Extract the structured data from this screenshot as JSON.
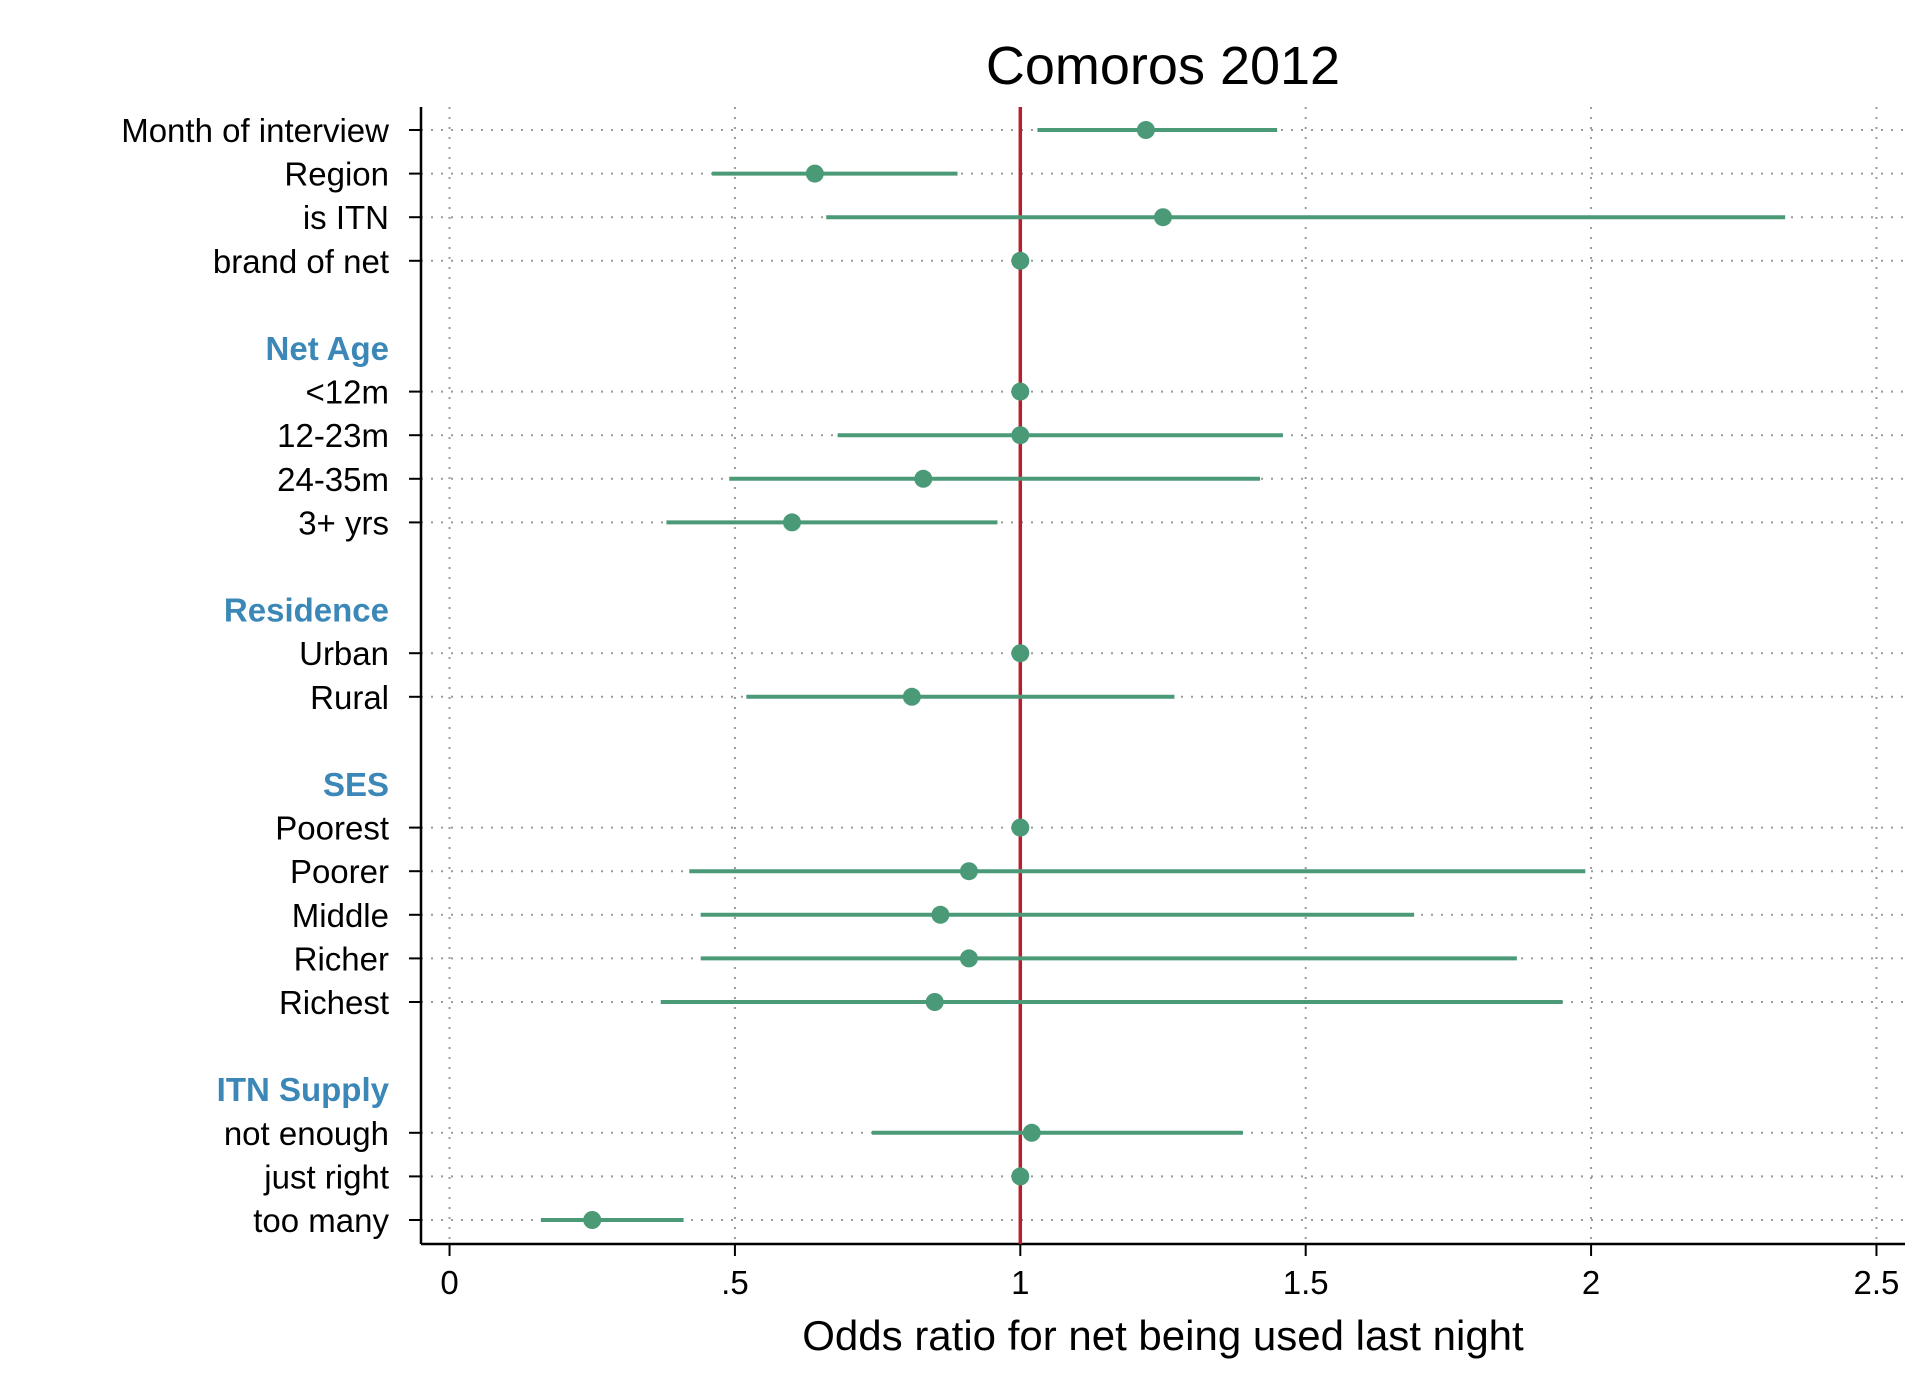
{
  "chart_data": {
    "type": "forest",
    "title": "Comoros 2012",
    "xlabel": "Odds ratio for net being used last night",
    "xlim": [
      -0.05,
      2.55
    ],
    "xticks": [
      {
        "value": 0,
        "label": "0"
      },
      {
        "value": 0.5,
        "label": ".5"
      },
      {
        "value": 1,
        "label": "1"
      },
      {
        "value": 1.5,
        "label": "1.5"
      },
      {
        "value": 2,
        "label": "2"
      },
      {
        "value": 2.5,
        "label": "2.5"
      }
    ],
    "reference_line": 1,
    "grid": "dotted",
    "colors": {
      "point": "#4a9a78",
      "ci": "#4a9a78",
      "reference": "#b5202e",
      "group": "#3b87b8",
      "grid": "#9a9a9a"
    },
    "rows": [
      {
        "kind": "item",
        "label": "Month of interview",
        "or": 1.22,
        "lo": 1.03,
        "hi": 1.45
      },
      {
        "kind": "item",
        "label": "Region",
        "or": 0.64,
        "lo": 0.46,
        "hi": 0.89
      },
      {
        "kind": "item",
        "label": "is ITN",
        "or": 1.25,
        "lo": 0.66,
        "hi": 2.34
      },
      {
        "kind": "item",
        "label": "brand of net",
        "or": 1.0,
        "lo": 1.0,
        "hi": 1.0
      },
      {
        "kind": "gap"
      },
      {
        "kind": "group",
        "label": "Net Age"
      },
      {
        "kind": "item",
        "label": "<12m",
        "or": 1.0,
        "lo": 1.0,
        "hi": 1.0
      },
      {
        "kind": "item",
        "label": "12-23m",
        "or": 1.0,
        "lo": 0.68,
        "hi": 1.46
      },
      {
        "kind": "item",
        "label": "24-35m",
        "or": 0.83,
        "lo": 0.49,
        "hi": 1.42
      },
      {
        "kind": "item",
        "label": "3+ yrs",
        "or": 0.6,
        "lo": 0.38,
        "hi": 0.96
      },
      {
        "kind": "gap"
      },
      {
        "kind": "group",
        "label": "Residence"
      },
      {
        "kind": "item",
        "label": "Urban",
        "or": 1.0,
        "lo": 1.0,
        "hi": 1.0
      },
      {
        "kind": "item",
        "label": "Rural",
        "or": 0.81,
        "lo": 0.52,
        "hi": 1.27
      },
      {
        "kind": "gap"
      },
      {
        "kind": "group",
        "label": "SES"
      },
      {
        "kind": "item",
        "label": "Poorest",
        "or": 1.0,
        "lo": 1.0,
        "hi": 1.0
      },
      {
        "kind": "item",
        "label": "Poorer",
        "or": 0.91,
        "lo": 0.42,
        "hi": 1.99
      },
      {
        "kind": "item",
        "label": "Middle",
        "or": 0.86,
        "lo": 0.44,
        "hi": 1.69
      },
      {
        "kind": "item",
        "label": "Richer",
        "or": 0.91,
        "lo": 0.44,
        "hi": 1.87
      },
      {
        "kind": "item",
        "label": "Richest",
        "or": 0.85,
        "lo": 0.37,
        "hi": 1.95
      },
      {
        "kind": "gap"
      },
      {
        "kind": "group",
        "label": "ITN Supply"
      },
      {
        "kind": "item",
        "label": "not enough",
        "or": 1.02,
        "lo": 0.74,
        "hi": 1.39
      },
      {
        "kind": "item",
        "label": "just right",
        "or": 1.0,
        "lo": 1.0,
        "hi": 1.0
      },
      {
        "kind": "item",
        "label": "too many",
        "or": 0.25,
        "lo": 0.16,
        "hi": 0.41
      }
    ]
  }
}
